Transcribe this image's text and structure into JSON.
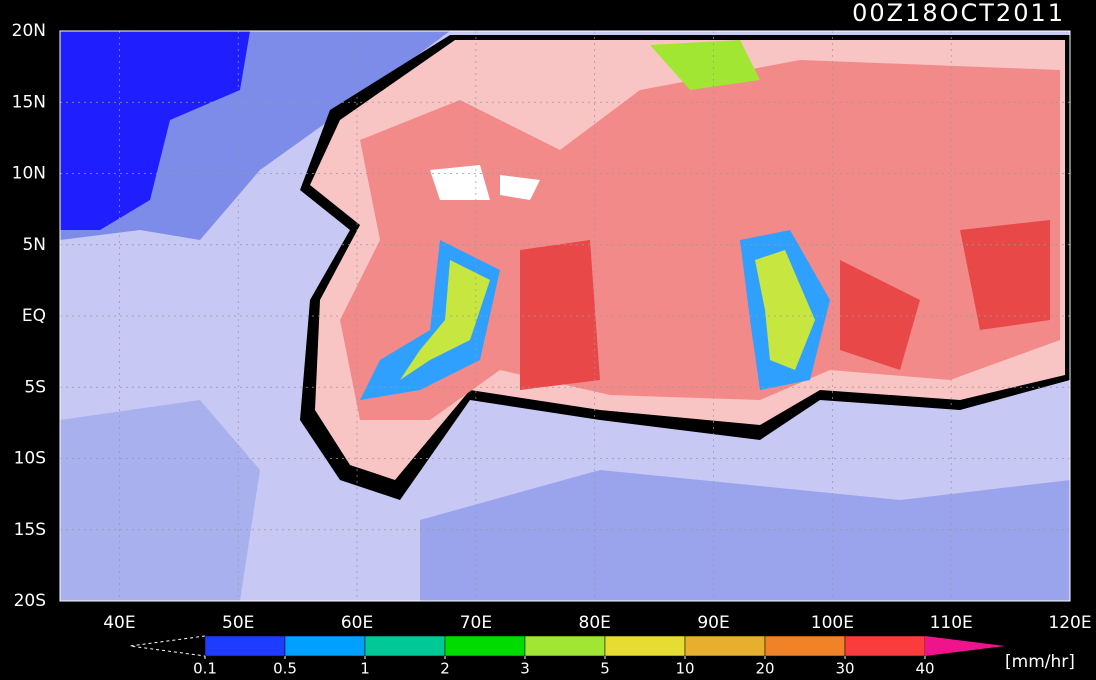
{
  "map": {
    "title": "00Z18OCT2011",
    "xlim": [
      35,
      120
    ],
    "ylim": [
      -20,
      20
    ],
    "xticks": [
      {
        "value": 40,
        "label": "40E"
      },
      {
        "value": 50,
        "label": "50E"
      },
      {
        "value": 60,
        "label": "60E"
      },
      {
        "value": 70,
        "label": "70E"
      },
      {
        "value": 80,
        "label": "80E"
      },
      {
        "value": 90,
        "label": "90E"
      },
      {
        "value": 100,
        "label": "100E"
      },
      {
        "value": 110,
        "label": "110E"
      },
      {
        "value": 120,
        "label": "120E"
      }
    ],
    "yticks": [
      {
        "value": 20,
        "label": "20N"
      },
      {
        "value": 15,
        "label": "15N"
      },
      {
        "value": 10,
        "label": "10N"
      },
      {
        "value": 5,
        "label": "5N"
      },
      {
        "value": 0,
        "label": "EQ"
      },
      {
        "value": -5,
        "label": "5S"
      },
      {
        "value": -10,
        "label": "10S"
      },
      {
        "value": -15,
        "label": "15S"
      },
      {
        "value": -20,
        "label": "20S"
      }
    ],
    "colorbar": {
      "levels": [
        0.1,
        0.5,
        1,
        2,
        3,
        5,
        10,
        20,
        30,
        40
      ],
      "colors": [
        "#1e3cff",
        "#00a0ff",
        "#00c896",
        "#00dc00",
        "#a0e632",
        "#e6dc32",
        "#e6af2d",
        "#f08228",
        "#fa3c3c",
        "#f0148c"
      ],
      "unit": "[mm/hr]"
    }
  }
}
